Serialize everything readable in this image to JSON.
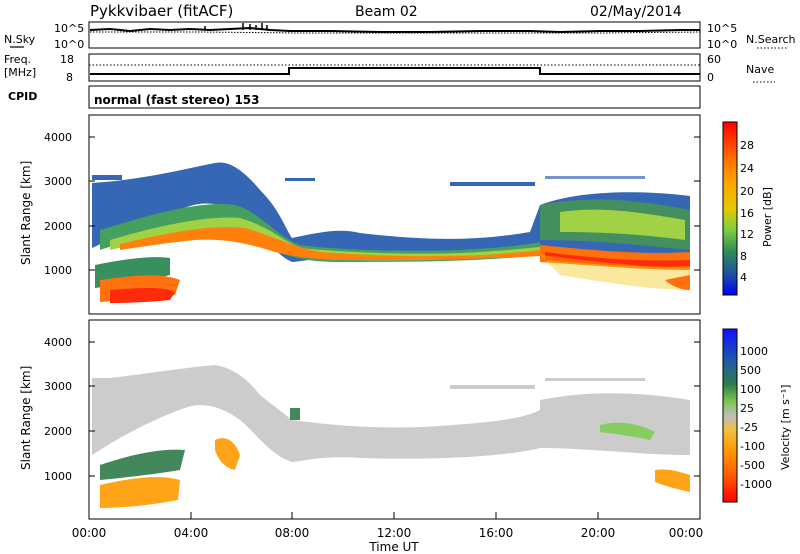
{
  "header": {
    "station": "Pykkvibaer (fitACF)",
    "beam": "Beam 02",
    "date": "02/May/2014"
  },
  "noise_panel": {
    "left_label": "N.Sky",
    "right_label": "N.Search",
    "left_ticks": [
      "10^5",
      "10^0"
    ],
    "right_ticks": [
      "10^5",
      "10^0"
    ]
  },
  "freq_panel": {
    "left_label_1": "Freq.",
    "left_label_2": "[MHz]",
    "right_label": "Nave",
    "left_ticks": [
      "18",
      "8"
    ],
    "right_ticks": [
      "60",
      "0"
    ]
  },
  "cpid": {
    "label": "CPID",
    "value": "normal (fast stereo) 153"
  },
  "power_panel": {
    "ylabel": "Slant Range [km]",
    "yticks": [
      "4000",
      "3000",
      "2000",
      "1000"
    ],
    "colorbar_label": "Power [dB]",
    "colorbar_ticks": [
      "28",
      "24",
      "20",
      "16",
      "12",
      "8",
      "4"
    ],
    "colorbar_colors": [
      "#ff0000",
      "#ff5a00",
      "#ff9a00",
      "#f2c200",
      "#8fd43a",
      "#3cb04e",
      "#2a7a66",
      "#1a4aa6",
      "#0000ff"
    ]
  },
  "velocity_panel": {
    "ylabel": "Slant Range [km]",
    "yticks": [
      "4000",
      "3000",
      "2000",
      "1000"
    ],
    "colorbar_label": "Velocity [m s⁻¹]",
    "colorbar_ticks": [
      "1000",
      "500",
      "100",
      "25",
      "-25",
      "-100",
      "-500",
      "-1000"
    ],
    "colorbar_colors": [
      "#1010ff",
      "#1f5aa8",
      "#2e7c4a",
      "#7ac74f",
      "#bdbdbd",
      "#f0c040",
      "#ff9a00",
      "#ff5a00",
      "#ff0000"
    ]
  },
  "x_axis": {
    "label": "Time UT",
    "ticks": [
      "00:00",
      "04:00",
      "08:00",
      "12:00",
      "16:00",
      "20:00",
      "00:00"
    ]
  },
  "chart_data": [
    {
      "type": "line",
      "title": "Pykkvibaer (fitACF)",
      "series": [
        {
          "name": "Freq.",
          "x": [
            "00:00",
            "08:00",
            "08:00",
            "18:00",
            "18:00",
            "24:00"
          ],
          "values": [
            10.2,
            10.2,
            12.8,
            12.8,
            10.2,
            10.2
          ]
        }
      ],
      "ylim": [
        8,
        18
      ]
    },
    {
      "type": "heatmap",
      "title": "Power [dB]",
      "xlabel": "Time UT",
      "ylabel": "Slant Range [km]",
      "xlim": [
        "00:00",
        "24:00"
      ],
      "ylim": [
        200,
        4600
      ],
      "clim": [
        0,
        30
      ]
    },
    {
      "type": "heatmap",
      "title": "Velocity",
      "xlabel": "Time UT",
      "ylabel": "Slant Range [km]",
      "xlim": [
        "00:00",
        "24:00"
      ],
      "ylim": [
        200,
        4600
      ],
      "clim": [
        -1000,
        1000
      ]
    }
  ]
}
